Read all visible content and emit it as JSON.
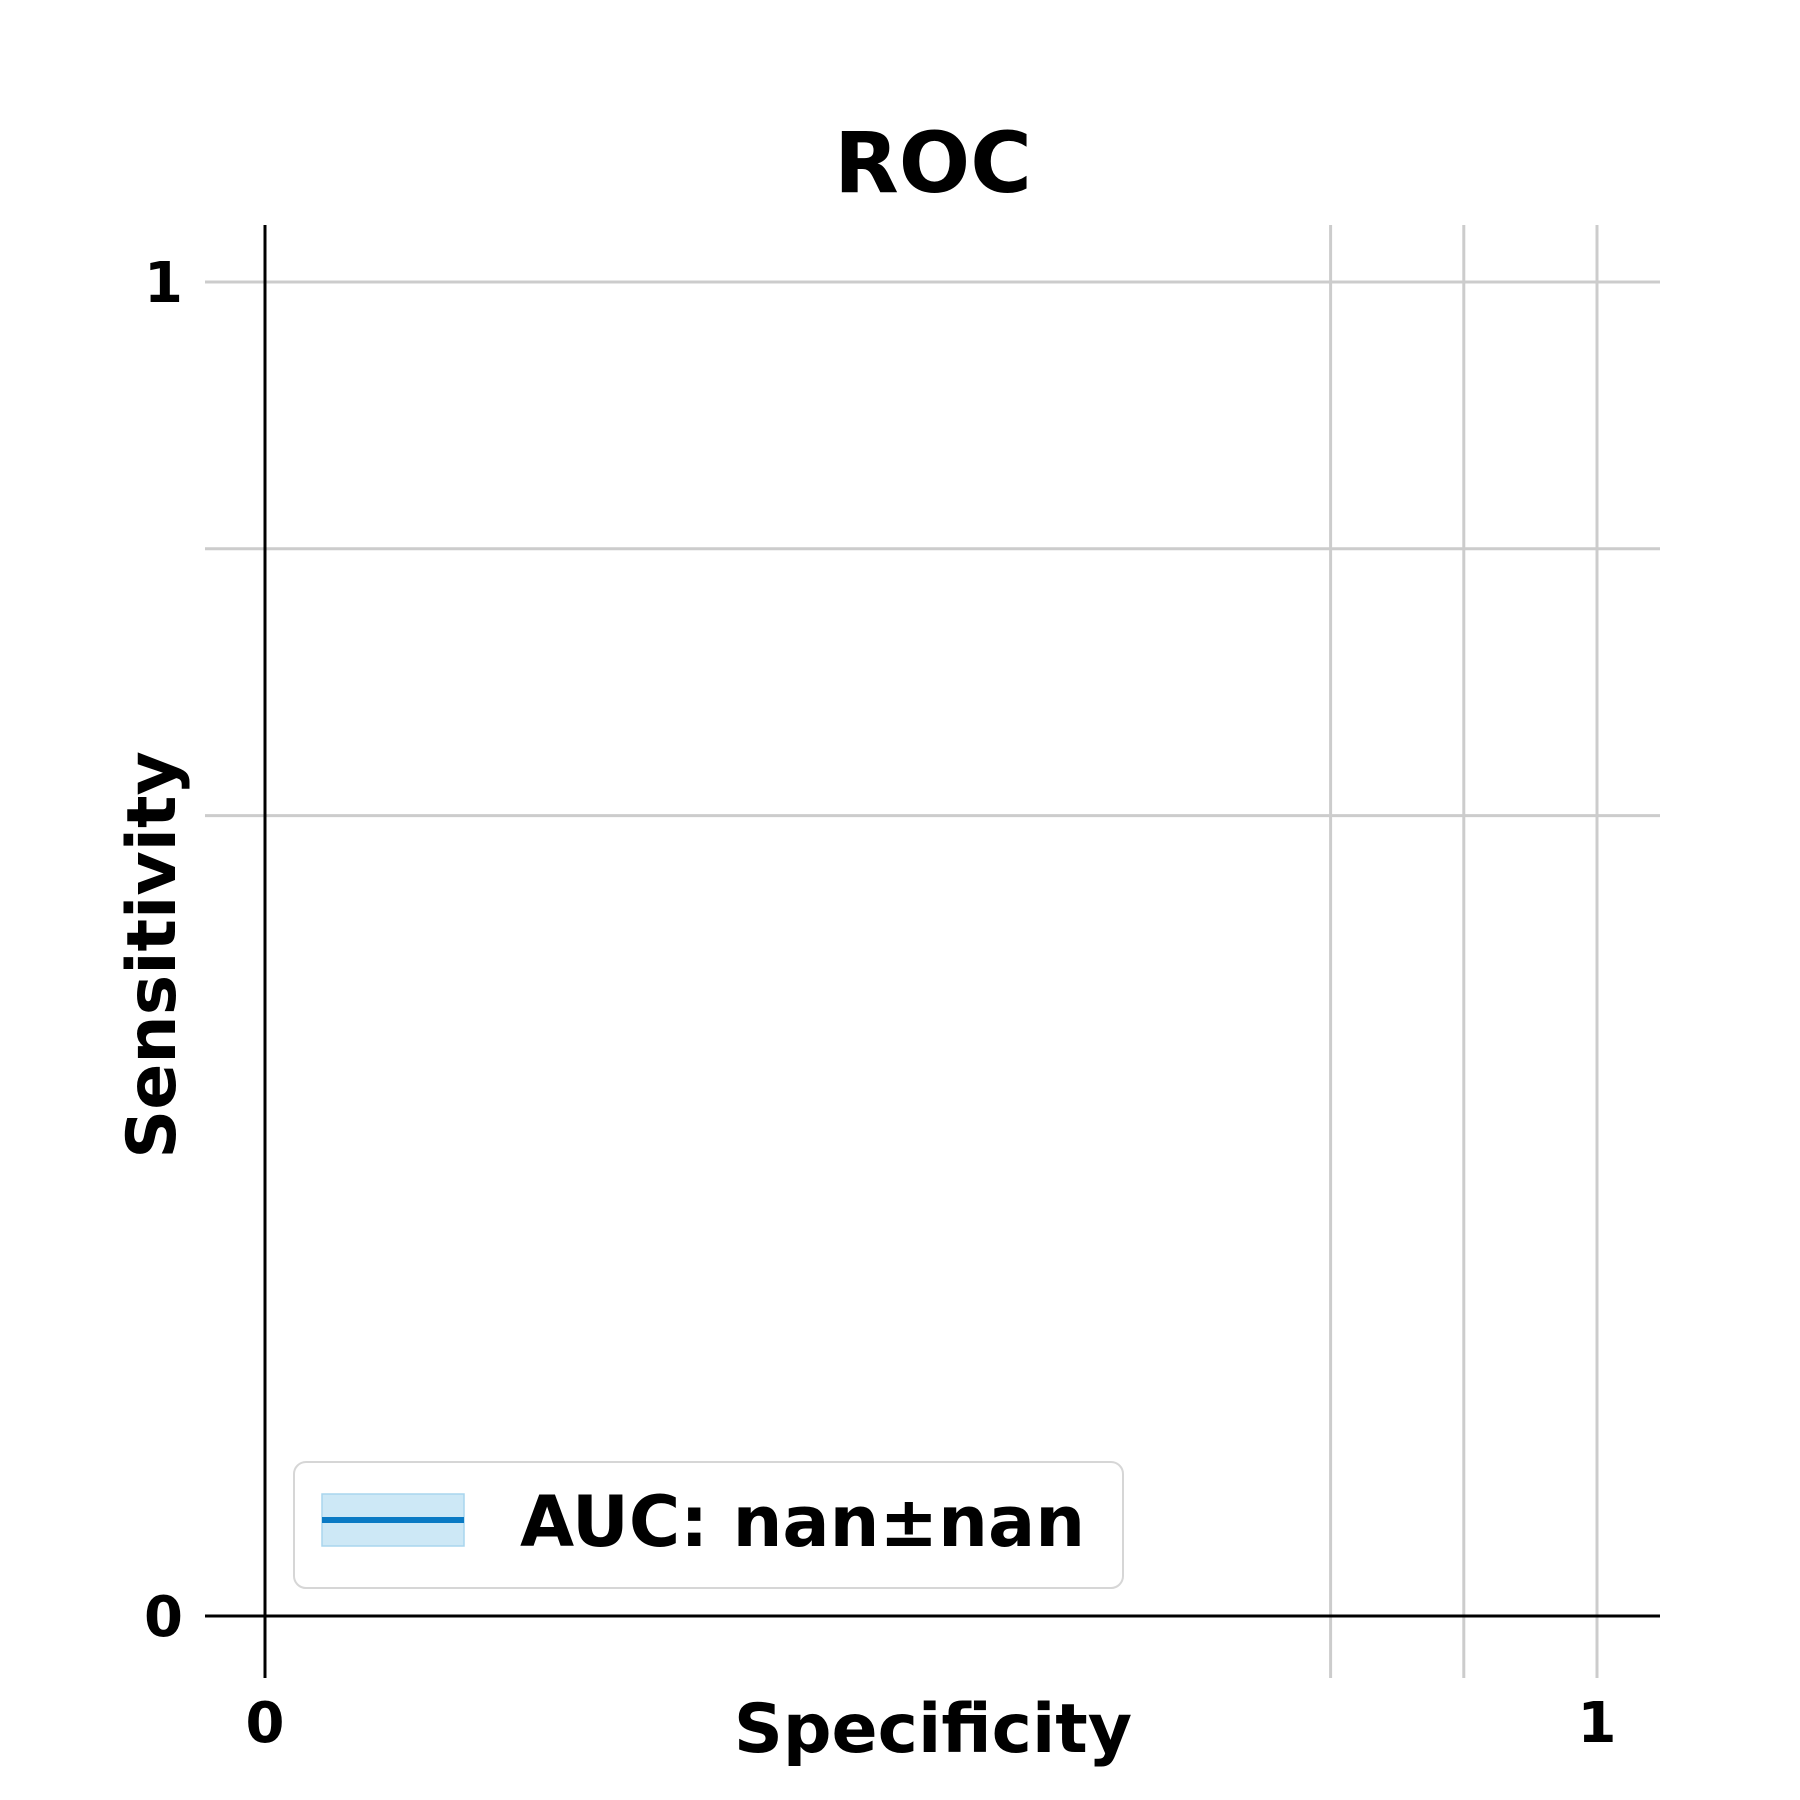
{
  "chart_data": {
    "type": "line",
    "title": "ROC",
    "xlabel": "Specificity",
    "ylabel": "Sensitivity",
    "xlim": [
      -0.045,
      1.045
    ],
    "ylim": [
      -0.045,
      1.045
    ],
    "x_ticks": [
      {
        "value": 0,
        "label": "0"
      },
      {
        "value": 1,
        "label": "1"
      }
    ],
    "y_ticks": [
      {
        "value": 0,
        "label": "0"
      },
      {
        "value": 1,
        "label": "1"
      }
    ],
    "x_gridlines": [
      0.8,
      0.9,
      1.0
    ],
    "y_gridlines": [
      0.6,
      0.8,
      1.0
    ],
    "grid": true,
    "legend": {
      "placement": "lower-left",
      "entries": [
        {
          "label": "AUC: nan±nan",
          "line_color": "#0a7ac4",
          "band_color": "#cde8f6"
        }
      ]
    },
    "series": [
      {
        "name": "AUC: nan±nan",
        "x": [],
        "y": [],
        "color": "#0a7ac4"
      }
    ]
  }
}
